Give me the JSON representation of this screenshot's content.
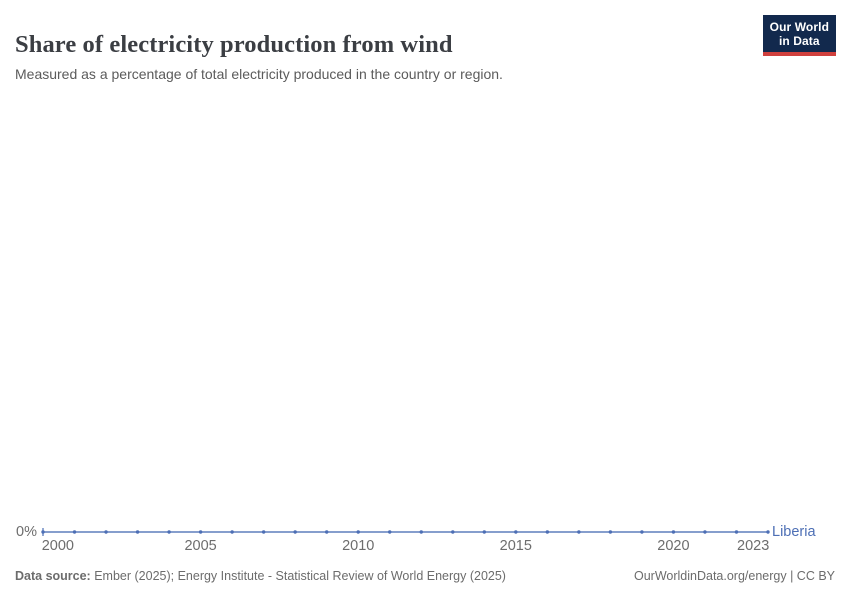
{
  "header": {
    "title": "Share of electricity production from wind",
    "subtitle": "Measured as a percentage of total electricity produced in the country or region.",
    "logo": {
      "line1": "Our World",
      "line2": "in Data"
    }
  },
  "chart_data": {
    "type": "line",
    "title": "Share of electricity production from wind",
    "subtitle": "Measured as a percentage of total electricity produced in the country or region.",
    "entity_label": "Liberia",
    "x": [
      2000,
      2001,
      2002,
      2003,
      2004,
      2005,
      2006,
      2007,
      2008,
      2009,
      2010,
      2011,
      2012,
      2013,
      2014,
      2015,
      2016,
      2017,
      2018,
      2019,
      2020,
      2021,
      2022,
      2023
    ],
    "series": [
      {
        "name": "Liberia",
        "color": "#4d6fb5",
        "values": [
          0,
          0,
          0,
          0,
          0,
          0,
          0,
          0,
          0,
          0,
          0,
          0,
          0,
          0,
          0,
          0,
          0,
          0,
          0,
          0,
          0,
          0,
          0,
          0
        ]
      }
    ],
    "unit": "%",
    "xlim": [
      2000,
      2023
    ],
    "x_tick_years": [
      2000,
      2005,
      2010,
      2015,
      2020,
      2023
    ],
    "y_ticks": [
      "0%"
    ],
    "grid": false,
    "legend_position": "end-of-line-label",
    "markers": true
  },
  "axis": {
    "y_zero_label": "0%"
  },
  "footer": {
    "source_label": "Data source:",
    "source_value": " Ember (2025); Energy Institute - Statistical Review of World Energy (2025)",
    "right_note": "OurWorldinData.org/energy | CC BY"
  },
  "colors": {
    "series_blue": "#4d6fb5",
    "logo_navy": "#12294d",
    "logo_red": "#d0403d",
    "title_text": "#3b3e43",
    "subtitle_text": "#5b5b5b",
    "axis_text": "#6d6d6d",
    "footer_text": "#6c6c6c",
    "background": "#ffffff"
  }
}
